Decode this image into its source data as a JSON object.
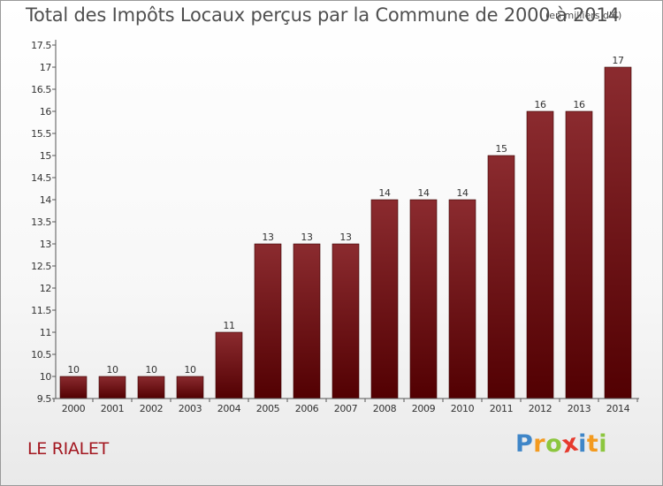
{
  "header": {
    "title": "Total des Impôts Locaux perçus par la Commune de 2000 à 2014",
    "unit_note": "(en milliers d'€)"
  },
  "commune_label": "LE RIALET",
  "brand": {
    "letters": [
      "P",
      "r",
      "o",
      "x",
      "i",
      "t",
      "i"
    ],
    "colors": [
      "#3f86c8",
      "#f39a1f",
      "#8cc63e",
      "#e63a2d",
      "#3f86c8",
      "#f39a1f",
      "#8cc63e"
    ]
  },
  "colors": {
    "bar_top": "#8b2b2f",
    "bar_bottom": "#520002",
    "axis": "#555555"
  },
  "chart_data": {
    "type": "bar",
    "title": "Total des Impôts Locaux perçus par la Commune de 2000 à 2014",
    "ylabel": "en milliers d'€",
    "xlabel": "",
    "categories": [
      "2000",
      "2001",
      "2002",
      "2003",
      "2004",
      "2005",
      "2006",
      "2007",
      "2008",
      "2009",
      "2010",
      "2011",
      "2012",
      "2013",
      "2014"
    ],
    "values": [
      10,
      10,
      10,
      10,
      11,
      13,
      13,
      13,
      14,
      14,
      14,
      15,
      16,
      16,
      17
    ],
    "value_labels": [
      "10",
      "10",
      "10",
      "10",
      "11",
      "13",
      "13",
      "13",
      "14",
      "14",
      "14",
      "15",
      "16",
      "16",
      "17"
    ],
    "ylim": [
      9.5,
      17.5
    ],
    "yticks": [
      9.5,
      10,
      10.5,
      11,
      11.5,
      12,
      12.5,
      13,
      13.5,
      14,
      14.5,
      15,
      15.5,
      16,
      16.5,
      17,
      17.5
    ],
    "ytick_labels": [
      "9.5",
      "10",
      "10.5",
      "11",
      "11.5",
      "12",
      "12.5",
      "13",
      "13.5",
      "14",
      "14.5",
      "15",
      "15.5",
      "16",
      "16.5",
      "17",
      "17.5"
    ],
    "grid": false
  }
}
